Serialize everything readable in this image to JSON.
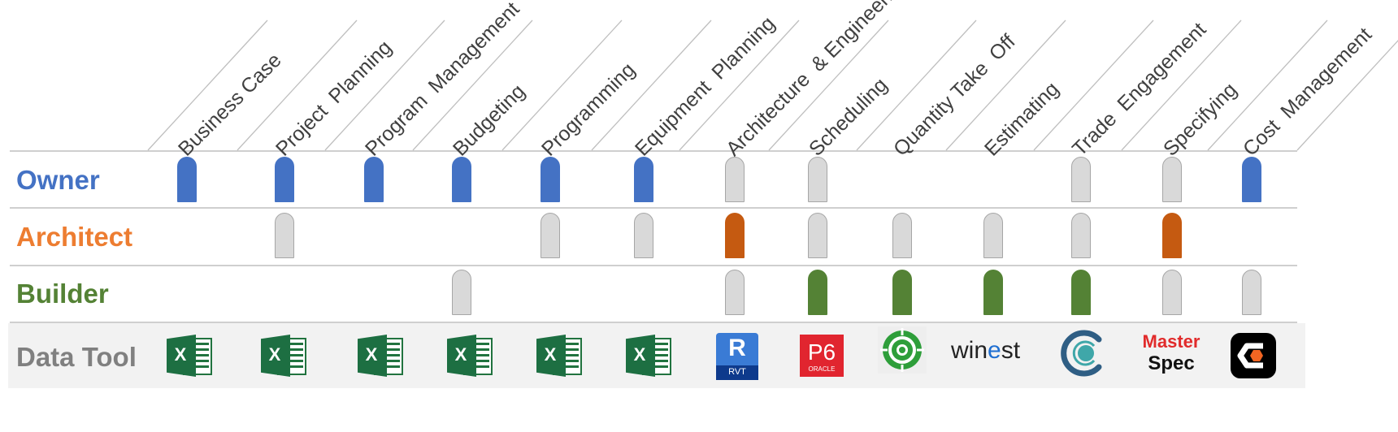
{
  "columns": [
    {
      "label": "Business Case",
      "tool": "excel-icon"
    },
    {
      "label": "Project  Planning",
      "tool": "excel-icon"
    },
    {
      "label": "Program  Management",
      "tool": "excel-icon"
    },
    {
      "label": "Budgeting",
      "tool": "excel-icon"
    },
    {
      "label": "Programming",
      "tool": "excel-icon"
    },
    {
      "label": "Equipment  Planning",
      "tool": "excel-icon"
    },
    {
      "label": "Architecture  & Engineering",
      "tool": "revit-icon"
    },
    {
      "label": "Scheduling",
      "tool": "p6-oracle-icon"
    },
    {
      "label": "Quantity Take  Off",
      "tool": "target-icon"
    },
    {
      "label": "Estimating",
      "tool": "winest-logo"
    },
    {
      "label": "Trade  Engagement",
      "tool": "ring-icon"
    },
    {
      "label": "Specifying",
      "tool": "masterspec-logo"
    },
    {
      "label": "Cost  Management",
      "tool": "cost-hex-icon"
    }
  ],
  "rows": [
    {
      "label": "Owner",
      "color": "#4472C4",
      "cells": [
        "active",
        "active",
        "active",
        "active",
        "active",
        "active",
        "inactive",
        "inactive",
        "",
        "",
        "inactive",
        "inactive",
        "active"
      ]
    },
    {
      "label": "Architect",
      "color": "#ED7D31",
      "cells": [
        "",
        "inactive",
        "",
        "",
        "inactive",
        "inactive",
        "active",
        "inactive",
        "inactive",
        "inactive",
        "inactive",
        "active",
        ""
      ]
    },
    {
      "label": "Builder",
      "color": "#548235",
      "cells": [
        "",
        "",
        "",
        "inactive",
        "",
        "",
        "inactive",
        "active",
        "active",
        "active",
        "active",
        "inactive",
        "inactive"
      ]
    }
  ],
  "active_colors": {
    "Owner": "#4472C4",
    "Architect": "#C55A11",
    "Builder": "#548235"
  },
  "inactive_color": "#D9D9D9",
  "data_tool": {
    "label": "Data Tool",
    "color": "#808080",
    "background": "#F2F2F2"
  },
  "logos": {
    "excel_letter": "X",
    "revit_letter": "R",
    "revit_sub": "RVT",
    "p6_text": "P6",
    "p6_sub": "ORACLE",
    "winest_prefix": "win",
    "winest_mid": "e",
    "winest_suffix": "st",
    "masterspec_top": "Master",
    "masterspec_bottom": "Spec"
  }
}
